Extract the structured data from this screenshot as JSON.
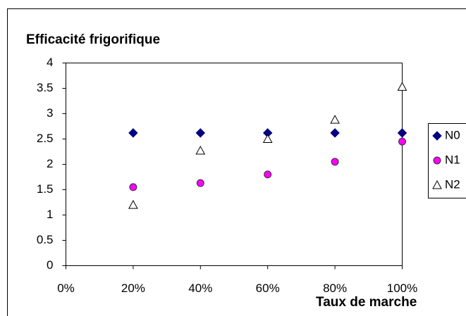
{
  "chart_data": {
    "type": "scatter",
    "title": "Efficacité frigorifique",
    "x_label": "Taux de marche",
    "x": [
      20,
      40,
      60,
      80,
      100
    ],
    "series": [
      {
        "name": "N0",
        "color": "#000080",
        "marker": "diamond",
        "values": [
          2.62,
          2.62,
          2.62,
          2.62,
          2.62
        ]
      },
      {
        "name": "N1",
        "color": "#ff00ff",
        "marker": "circle",
        "values": [
          1.55,
          1.63,
          1.8,
          2.05,
          2.45
        ]
      },
      {
        "name": "N2",
        "color": "#ffffff",
        "marker": "triangle",
        "values": [
          1.2,
          2.27,
          2.5,
          2.88,
          3.53
        ]
      }
    ],
    "xlim": [
      0,
      100
    ],
    "xticks": [
      {
        "value": 0,
        "label": "0%"
      },
      {
        "value": 20,
        "label": "20%"
      },
      {
        "value": 40,
        "label": "40%"
      },
      {
        "value": 60,
        "label": "60%"
      },
      {
        "value": 80,
        "label": "80%"
      },
      {
        "value": 100,
        "label": "100%"
      }
    ],
    "ylim": [
      0,
      4
    ],
    "yticks": [
      0,
      0.5,
      1,
      1.5,
      2,
      2.5,
      3,
      3.5,
      4
    ],
    "grid": false,
    "legend": "right"
  }
}
